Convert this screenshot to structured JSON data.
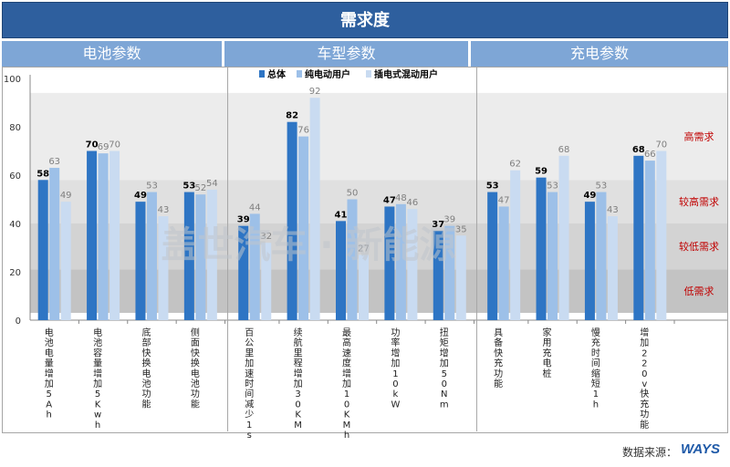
{
  "page_title": "需求度",
  "group_headers": [
    "电池参数",
    "车型参数",
    "充电参数"
  ],
  "watermark": "盖世汽车 · 新能源",
  "source_label": "数据来源：",
  "brand": "WAYS",
  "colors": {
    "series": [
      "#2e75c4",
      "#9dc0e8",
      "#c9dbf1"
    ],
    "band_high": "#ececec",
    "band_mid_high": "#e0e0e0",
    "band_mid_low": "#d3d3d3",
    "band_low": "#c3c3c3",
    "band_label": "#c00000",
    "header_bg": "#2e5f9e",
    "group_bg": "#7ea6d6"
  },
  "chart_data": {
    "type": "bar",
    "ylim": [
      0,
      100
    ],
    "yticks": [
      0,
      20,
      40,
      60,
      80,
      100
    ],
    "legend_position": "top",
    "categories": [
      "电池电量增加5Ah",
      "电池容量增加5Kwh",
      "底部快换电池功能",
      "侧面快换电池功能",
      "百公里加速时间减少1s",
      "续航里程增加30KM",
      "最高速度增加10KMh",
      "功率增加10kW",
      "扭矩增加50Nm",
      "具备快充功能",
      "家用充电桩",
      "慢充时间缩短1h",
      "增加220v快充功能"
    ],
    "series": [
      {
        "name": "总体",
        "values": [
          58,
          70,
          49,
          53,
          39,
          82,
          41,
          47,
          37,
          53,
          59,
          49,
          68
        ]
      },
      {
        "name": "纯电动用户",
        "values": [
          63,
          69,
          53,
          52,
          44,
          76,
          50,
          48,
          39,
          47,
          53,
          53,
          66
        ]
      },
      {
        "name": "插电式混动用户",
        "values": [
          49,
          70,
          43,
          54,
          32,
          92,
          27,
          46,
          35,
          62,
          68,
          43,
          70
        ]
      }
    ],
    "groups": [
      {
        "label": "电池参数",
        "count": 4
      },
      {
        "label": "车型参数",
        "count": 5
      },
      {
        "label": "充电参数",
        "count": 4
      }
    ],
    "bands": [
      {
        "label": "高需求",
        "from": 58,
        "to": 94
      },
      {
        "label": "较高需求",
        "from": 40,
        "to": 58
      },
      {
        "label": "较低需求",
        "from": 21,
        "to": 40
      },
      {
        "label": "低需求",
        "from": 3,
        "to": 21
      }
    ]
  }
}
